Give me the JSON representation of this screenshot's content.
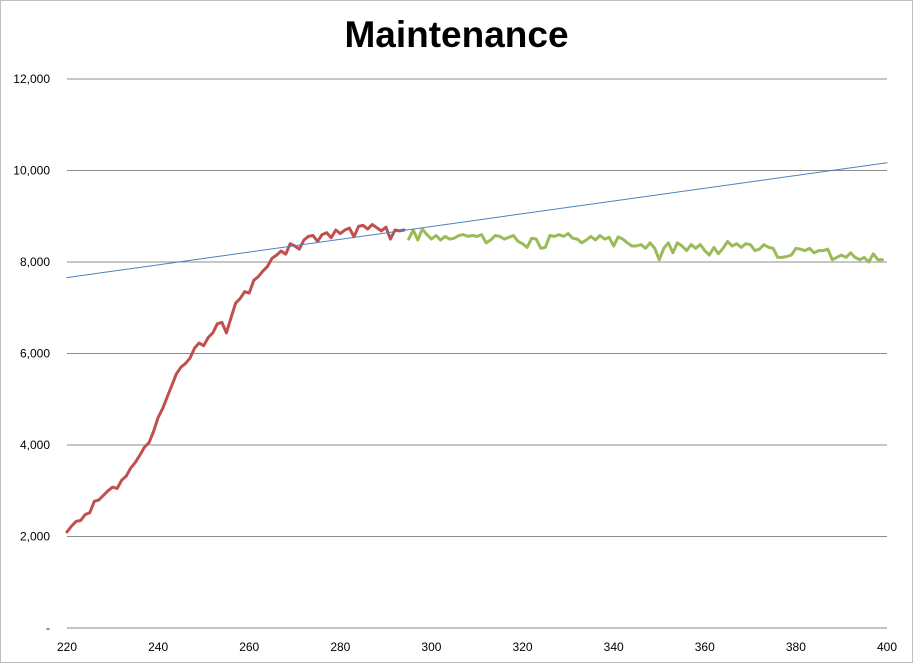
{
  "chart_data": {
    "type": "line",
    "title": "Maintenance",
    "xlabel": "",
    "ylabel": "",
    "xlim": [
      220,
      400
    ],
    "ylim": [
      0,
      12000
    ],
    "grid": "horizontal",
    "legend": "none",
    "x_ticks": [
      "220",
      "240",
      "260",
      "280",
      "300",
      "320",
      "340",
      "360",
      "380",
      "400"
    ],
    "y_ticks": [
      "-",
      "2,000",
      "4,000",
      "6,000",
      "8,000",
      "10,000",
      "12,000"
    ],
    "series": [
      {
        "color": "#c0504d",
        "x": [
          220,
          221,
          222,
          223,
          224,
          225,
          226,
          227,
          228,
          229,
          230,
          231,
          232,
          233,
          234,
          235,
          236,
          237,
          238,
          239,
          240,
          241,
          242,
          243,
          244,
          245,
          246,
          247,
          248,
          249,
          250,
          251,
          252,
          253,
          254,
          255,
          256,
          257,
          258,
          259,
          260,
          261,
          262,
          263,
          264,
          265,
          266,
          267,
          268,
          269,
          270,
          271,
          272,
          273,
          274,
          275,
          276,
          277,
          278,
          279,
          280,
          281,
          282,
          283,
          284,
          285,
          286,
          287,
          288,
          289,
          290,
          291,
          292,
          293,
          294
        ],
        "y": [
          2100,
          2230,
          2330,
          2350,
          2480,
          2520,
          2770,
          2800,
          2900,
          3000,
          3080,
          3050,
          3230,
          3320,
          3500,
          3620,
          3780,
          3950,
          4050,
          4300,
          4600,
          4800,
          5050,
          5300,
          5550,
          5700,
          5780,
          5900,
          6120,
          6230,
          6170,
          6350,
          6450,
          6650,
          6680,
          6450,
          6780,
          7100,
          7200,
          7350,
          7320,
          7600,
          7680,
          7800,
          7900,
          8080,
          8150,
          8240,
          8170,
          8400,
          8350,
          8280,
          8480,
          8560,
          8580,
          8450,
          8600,
          8640,
          8530,
          8700,
          8620,
          8700,
          8740,
          8550,
          8780,
          8800,
          8720,
          8820,
          8750,
          8680,
          8760,
          8500,
          8700,
          8680,
          8700
        ]
      },
      {
        "color": "#9bbb59",
        "x": [
          295,
          296,
          297,
          298,
          299,
          300,
          301,
          302,
          303,
          304,
          305,
          306,
          307,
          308,
          309,
          310,
          311,
          312,
          313,
          314,
          315,
          316,
          317,
          318,
          319,
          320,
          321,
          322,
          323,
          324,
          325,
          326,
          327,
          328,
          329,
          330,
          331,
          332,
          333,
          334,
          335,
          336,
          337,
          338,
          339,
          340,
          341,
          342,
          343,
          344,
          345,
          346,
          347,
          348,
          349,
          350,
          351,
          352,
          353,
          354,
          355,
          356,
          357,
          358,
          359,
          360,
          361,
          362,
          363,
          364,
          365,
          366,
          367,
          368,
          369,
          370,
          371,
          372,
          373,
          374,
          375,
          376,
          377,
          378,
          379,
          380,
          381,
          382,
          383,
          384,
          385,
          386,
          387,
          388,
          389,
          390,
          391,
          392,
          393,
          394,
          395,
          396,
          397,
          398,
          399
        ],
        "y": [
          8500,
          8700,
          8480,
          8720,
          8600,
          8500,
          8580,
          8480,
          8560,
          8500,
          8520,
          8580,
          8600,
          8560,
          8580,
          8560,
          8600,
          8420,
          8480,
          8580,
          8560,
          8500,
          8540,
          8580,
          8450,
          8400,
          8320,
          8520,
          8500,
          8300,
          8320,
          8580,
          8560,
          8600,
          8560,
          8620,
          8520,
          8500,
          8420,
          8480,
          8560,
          8480,
          8580,
          8500,
          8540,
          8350,
          8550,
          8500,
          8420,
          8350,
          8350,
          8380,
          8300,
          8420,
          8300,
          8050,
          8300,
          8420,
          8200,
          8420,
          8350,
          8250,
          8380,
          8300,
          8380,
          8250,
          8150,
          8320,
          8180,
          8300,
          8450,
          8350,
          8400,
          8320,
          8400,
          8380,
          8250,
          8280,
          8380,
          8320,
          8300,
          8100,
          8100,
          8120,
          8150,
          8300,
          8280,
          8250,
          8300,
          8200,
          8250,
          8250,
          8280,
          8050,
          8100,
          8150,
          8100,
          8200,
          8100,
          8050,
          8100,
          8000,
          8180,
          8050,
          8050
        ]
      },
      {
        "color": "#4f81bd",
        "x": [
          220,
          400
        ],
        "y": [
          7660,
          10170
        ]
      }
    ]
  }
}
